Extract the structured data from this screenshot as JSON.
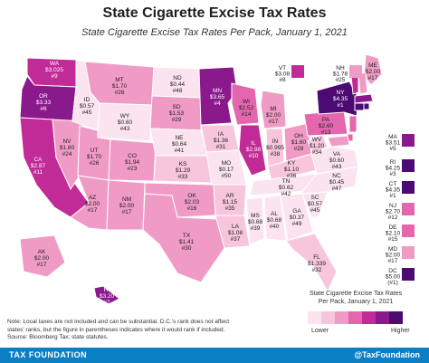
{
  "title": "State Cigarette Excise Tax Rates",
  "subtitle": "State Cigarette Excise Tax Rates Per Pack, January 1, 2021",
  "legend": {
    "title_line1": "State Cigarette Excise Tax Rates",
    "title_line2": "Per Pack, January 1, 2021",
    "lower": "Lower",
    "higher": "Higher",
    "colors": [
      "#fbe4ef",
      "#f7c6dd",
      "#f09bc5",
      "#e466ae",
      "#c12b97",
      "#8a1a8c",
      "#4b0b72"
    ]
  },
  "note_line1": "Note: Local taxes are not included and can be substantial. D.C.'s rank does not affect",
  "note_line2": "states' ranks, but the figure in parentheses indicates where it would rank if included.",
  "source": "Source: Bloomberg Tax; state statutes.",
  "footer": {
    "brand": "TAX FOUNDATION",
    "handle": "@TaxFoundation"
  },
  "states": {
    "WA": {
      "rate": "$3.025",
      "rank": "#9"
    },
    "OR": {
      "rate": "$3.33",
      "rank": "#6"
    },
    "CA": {
      "rate": "$2.87",
      "rank": "#11"
    },
    "NV": {
      "rate": "$1.80",
      "rank": "#24"
    },
    "ID": {
      "rate": "$0.57",
      "rank": "#45"
    },
    "MT": {
      "rate": "$1.70",
      "rank": "#26"
    },
    "WY": {
      "rate": "$0.60",
      "rank": "#43"
    },
    "UT": {
      "rate": "$1.70",
      "rank": "#26"
    },
    "AZ": {
      "rate": "$2.00",
      "rank": "#17"
    },
    "CO": {
      "rate": "$1.94",
      "rank": "#23"
    },
    "NM": {
      "rate": "$2.00",
      "rank": "#17"
    },
    "ND": {
      "rate": "$0.44",
      "rank": "#48"
    },
    "SD": {
      "rate": "$1.53",
      "rank": "#29"
    },
    "NE": {
      "rate": "$0.64",
      "rank": "#41"
    },
    "KS": {
      "rate": "$1.29",
      "rank": "#33"
    },
    "OK": {
      "rate": "$2.03",
      "rank": "#16"
    },
    "TX": {
      "rate": "$1.41",
      "rank": "#30"
    },
    "MN": {
      "rate": "$3.65",
      "rank": "#4"
    },
    "IA": {
      "rate": "$1.36",
      "rank": "#31"
    },
    "MO": {
      "rate": "$0.17",
      "rank": "#50"
    },
    "AR": {
      "rate": "$1.15",
      "rank": "#35"
    },
    "LA": {
      "rate": "$1.08",
      "rank": "#37"
    },
    "WI": {
      "rate": "$2.52",
      "rank": "#14"
    },
    "IL": {
      "rate": "$2.98",
      "rank": "#10"
    },
    "MI": {
      "rate": "$2.00",
      "rank": "#17"
    },
    "IN": {
      "rate": "$0.995",
      "rank": "#38"
    },
    "OH": {
      "rate": "$1.60",
      "rank": "#28"
    },
    "KY": {
      "rate": "$1.10",
      "rank": "#36"
    },
    "TN": {
      "rate": "$0.62",
      "rank": "#42"
    },
    "MS": {
      "rate": "$0.68",
      "rank": "#39"
    },
    "AL": {
      "rate": "$0.68",
      "rank": "#40"
    },
    "GA": {
      "rate": "$0.37",
      "rank": "#49"
    },
    "FL": {
      "rate": "$1.339",
      "rank": "#32"
    },
    "SC": {
      "rate": "$0.57",
      "rank": "#45"
    },
    "NC": {
      "rate": "$0.45",
      "rank": "#47"
    },
    "VA": {
      "rate": "$0.60",
      "rank": "#43"
    },
    "WV": {
      "rate": "$1.20",
      "rank": "#34"
    },
    "PA": {
      "rate": "$2.60",
      "rank": "#13"
    },
    "NY": {
      "rate": "$4.35",
      "rank": "#1"
    },
    "ME": {
      "rate": "$2.00",
      "rank": "#17"
    },
    "VT": {
      "rate": "$3.08",
      "rank": "#8"
    },
    "NH": {
      "rate": "$1.78",
      "rank": "#25"
    },
    "AK": {
      "rate": "$2.00",
      "rank": "#17"
    },
    "HI": {
      "rate": "$3.20",
      "rank": "#7"
    },
    "MA": {
      "rate": "$3.51",
      "rank": "#5"
    },
    "RI": {
      "rate": "$4.25",
      "rank": "#3"
    },
    "CT": {
      "rate": "$4.35",
      "rank": "#1"
    },
    "NJ": {
      "rate": "$2.70",
      "rank": "#12"
    },
    "DE": {
      "rate": "$2.10",
      "rank": "#15"
    },
    "MD": {
      "rate": "$2.00",
      "rank": "#17"
    },
    "DC": {
      "rate": "$5.00",
      "rank": "(#1)"
    }
  }
}
